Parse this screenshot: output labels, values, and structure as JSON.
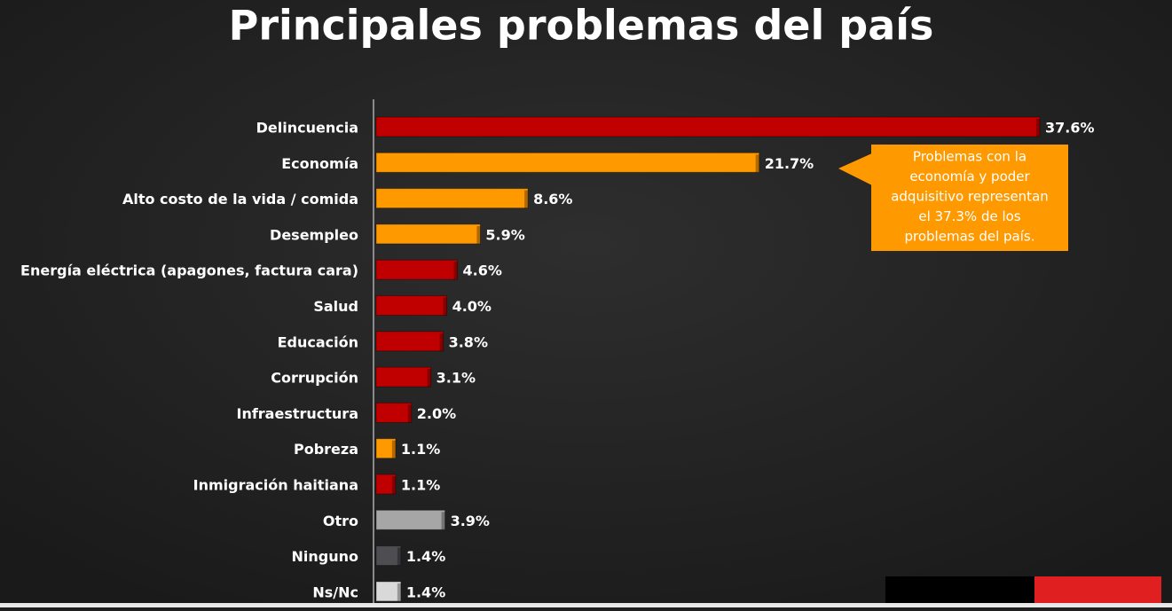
{
  "chart_data": {
    "type": "bar",
    "orientation": "horizontal",
    "title": "Principales problemas del país",
    "categories": [
      "Delincuencia",
      "Economía",
      "Alto costo de la vida / comida",
      "Desempleo",
      "Energía eléctrica (apagones, factura cara)",
      "Salud",
      "Educación",
      "Corrupción",
      "Infraestructura",
      "Pobreza",
      "Inmigración haitiana",
      "Otro",
      "Ninguno",
      "Ns/Nc"
    ],
    "values": [
      37.6,
      21.7,
      8.6,
      5.9,
      4.6,
      4.0,
      3.8,
      3.1,
      2.0,
      1.1,
      1.1,
      3.9,
      1.4,
      1.4
    ],
    "value_labels": [
      "37.6%",
      "21.7%",
      "8.6%",
      "5.9%",
      "4.6%",
      "4.0%",
      "3.8%",
      "3.1%",
      "2.0%",
      "1.1%",
      "1.1%",
      "3.9%",
      "1.4%",
      "1.4%"
    ],
    "colors": [
      "#c00000",
      "#ff9900",
      "#ff9900",
      "#ff9900",
      "#c00000",
      "#c00000",
      "#c00000",
      "#c00000",
      "#c00000",
      "#ff9900",
      "#c00000",
      "#a6a6a6",
      "#4d4d52",
      "#d9d9d9"
    ],
    "annotation": [
      "Problemas con la",
      "economía y poder",
      "adquisitivo representan",
      "el 37.3% de los",
      "problemas del país."
    ]
  }
}
